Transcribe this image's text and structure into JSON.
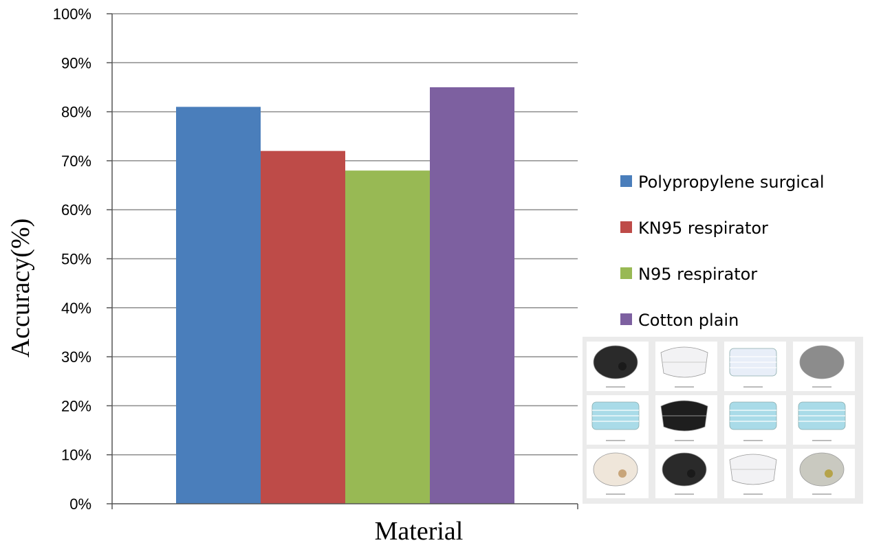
{
  "chart_data": {
    "type": "bar",
    "title": "",
    "xlabel": "Material",
    "ylabel": "Accuracy(%)",
    "ylim": [
      0,
      100
    ],
    "y_ticks": [
      "0%",
      "10%",
      "20%",
      "30%",
      "40%",
      "50%",
      "60%",
      "70%",
      "80%",
      "90%",
      "100%"
    ],
    "grid": true,
    "legend_position": "right",
    "categories": [
      "Material"
    ],
    "series": [
      {
        "name": "Polypropylene surgical",
        "values": [
          81
        ],
        "color": "#4a7ebb"
      },
      {
        "name": "KN95 respirator",
        "values": [
          72
        ],
        "color": "#be4b48"
      },
      {
        "name": "N95 respirator",
        "values": [
          68
        ],
        "color": "#98b954"
      },
      {
        "name": "Cotton plain",
        "values": [
          85
        ],
        "color": "#7d60a0"
      }
    ]
  },
  "mask_samples": {
    "icons": [
      "black-valve-mask-icon",
      "white-kn95-mask-icon",
      "white-surgical-mask-icon",
      "gray-n95-mask-icon",
      "blue-surgical-mask-icon",
      "black-cloth-mask-icon",
      "blue-surgical-mask-icon",
      "blue-surgical-mask-icon",
      "beige-valve-mask-icon",
      "black-valve-mask-icon",
      "white-kn95-mask-icon",
      "gray-valve-mask-icon"
    ]
  }
}
